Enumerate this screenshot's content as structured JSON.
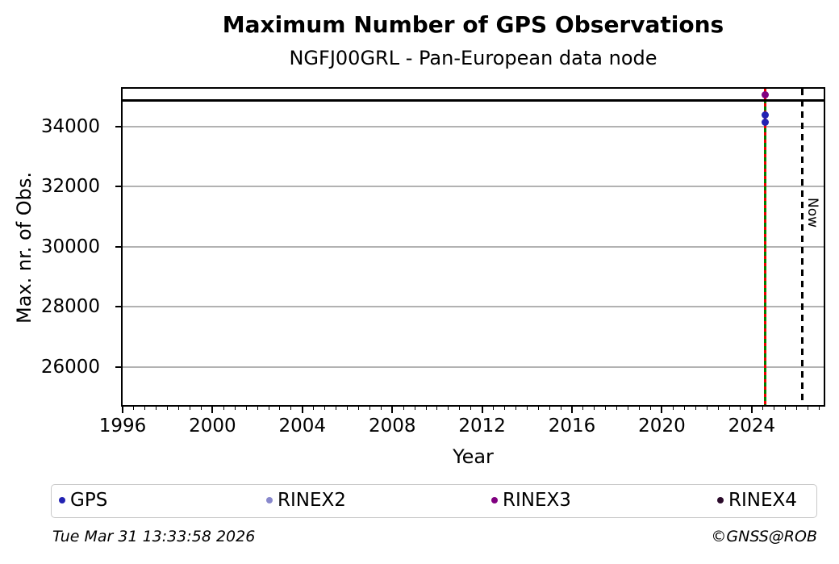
{
  "footer": {
    "timestamp": "Tue Mar 31 13:33:58 2026",
    "credit": "©GNSS@ROB"
  },
  "chart_data": {
    "type": "scatter",
    "title": "Maximum Number of GPS Observations",
    "subtitle": "NGFJ00GRL - Pan-European data node",
    "xlabel": "Year",
    "ylabel": "Max. nr. of Obs.",
    "xlim": [
      1996,
      2027.2
    ],
    "ylim": [
      24730,
      35260
    ],
    "xticks": [
      1996,
      2000,
      2004,
      2008,
      2012,
      2016,
      2020,
      2024
    ],
    "xtick_minor_step": 0.5,
    "yticks": [
      26000,
      28000,
      30000,
      32000,
      34000
    ],
    "grid": {
      "axis": "y",
      "color": "#b2b2b2"
    },
    "series": [
      {
        "name": "GPS",
        "color": "#2222b2",
        "points": [
          [
            2024.6,
            34380
          ],
          [
            2024.6,
            34140
          ]
        ]
      },
      {
        "name": "RINEX2",
        "color": "#8888cc",
        "points": []
      },
      {
        "name": "RINEX3",
        "color": "#800080",
        "points": [
          [
            2024.6,
            35060
          ]
        ]
      },
      {
        "name": "RINEX4",
        "color": "#2a0a2a",
        "points": []
      }
    ],
    "hlines": [
      {
        "y": 34870,
        "color": "#000000",
        "style": "solid",
        "width": 3
      }
    ],
    "vlines": [
      {
        "x": 2024.6,
        "color": "#008000",
        "style": "solid",
        "width": 3,
        "label": ""
      },
      {
        "x": 2024.6,
        "color": "#ee0000",
        "style": "dashed",
        "width": 3,
        "label": ""
      },
      {
        "x": 2026.25,
        "color": "#000000",
        "style": "dashed",
        "width": 3,
        "label": "Now"
      }
    ],
    "legend": {
      "position": "bottom",
      "entries": [
        "GPS",
        "RINEX2",
        "RINEX3",
        "RINEX4"
      ]
    }
  }
}
